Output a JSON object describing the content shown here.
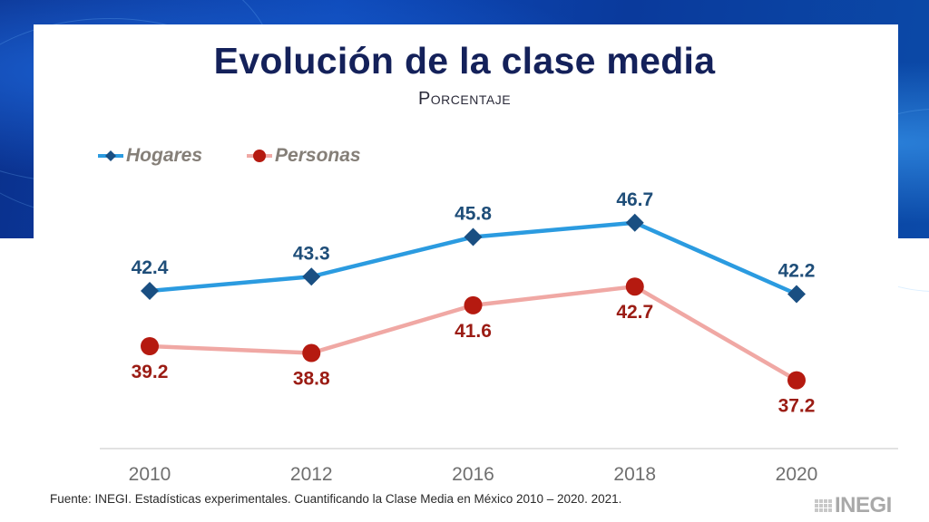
{
  "page": {
    "title": "Evolución de la clase media",
    "subtitle": "Porcentaje",
    "source": "Fuente: INEGI. Estadísticas experimentales. Cuantificando la Clase Media en México 2010 – 2020. 2021.",
    "logo_text": "INEGI"
  },
  "colors": {
    "hogares_line": "#2b9be0",
    "hogares_marker": "#1a4f82",
    "hogares_label": "#1f4e79",
    "personas_line": "#f0a8a4",
    "personas_marker": "#b51a10",
    "personas_label": "#9b1c14",
    "title": "#14215a"
  },
  "chart_data": {
    "type": "line",
    "title": "Evolución de la clase media",
    "subtitle": "Porcentaje",
    "xlabel": "",
    "ylabel": "",
    "categories": [
      "2010",
      "2012",
      "2016",
      "2018",
      "2020"
    ],
    "series": [
      {
        "name": "Hogares",
        "values": [
          42.4,
          43.3,
          45.8,
          46.7,
          42.2
        ],
        "marker": "diamond",
        "label_position": "above"
      },
      {
        "name": "Personas",
        "values": [
          39.2,
          38.8,
          41.6,
          42.7,
          37.2
        ],
        "marker": "circle",
        "label_position": "below"
      }
    ],
    "legend": {
      "position": "top-left",
      "entries": [
        "Hogares",
        "Personas"
      ]
    },
    "grid": false,
    "y_axis_visible": false
  }
}
